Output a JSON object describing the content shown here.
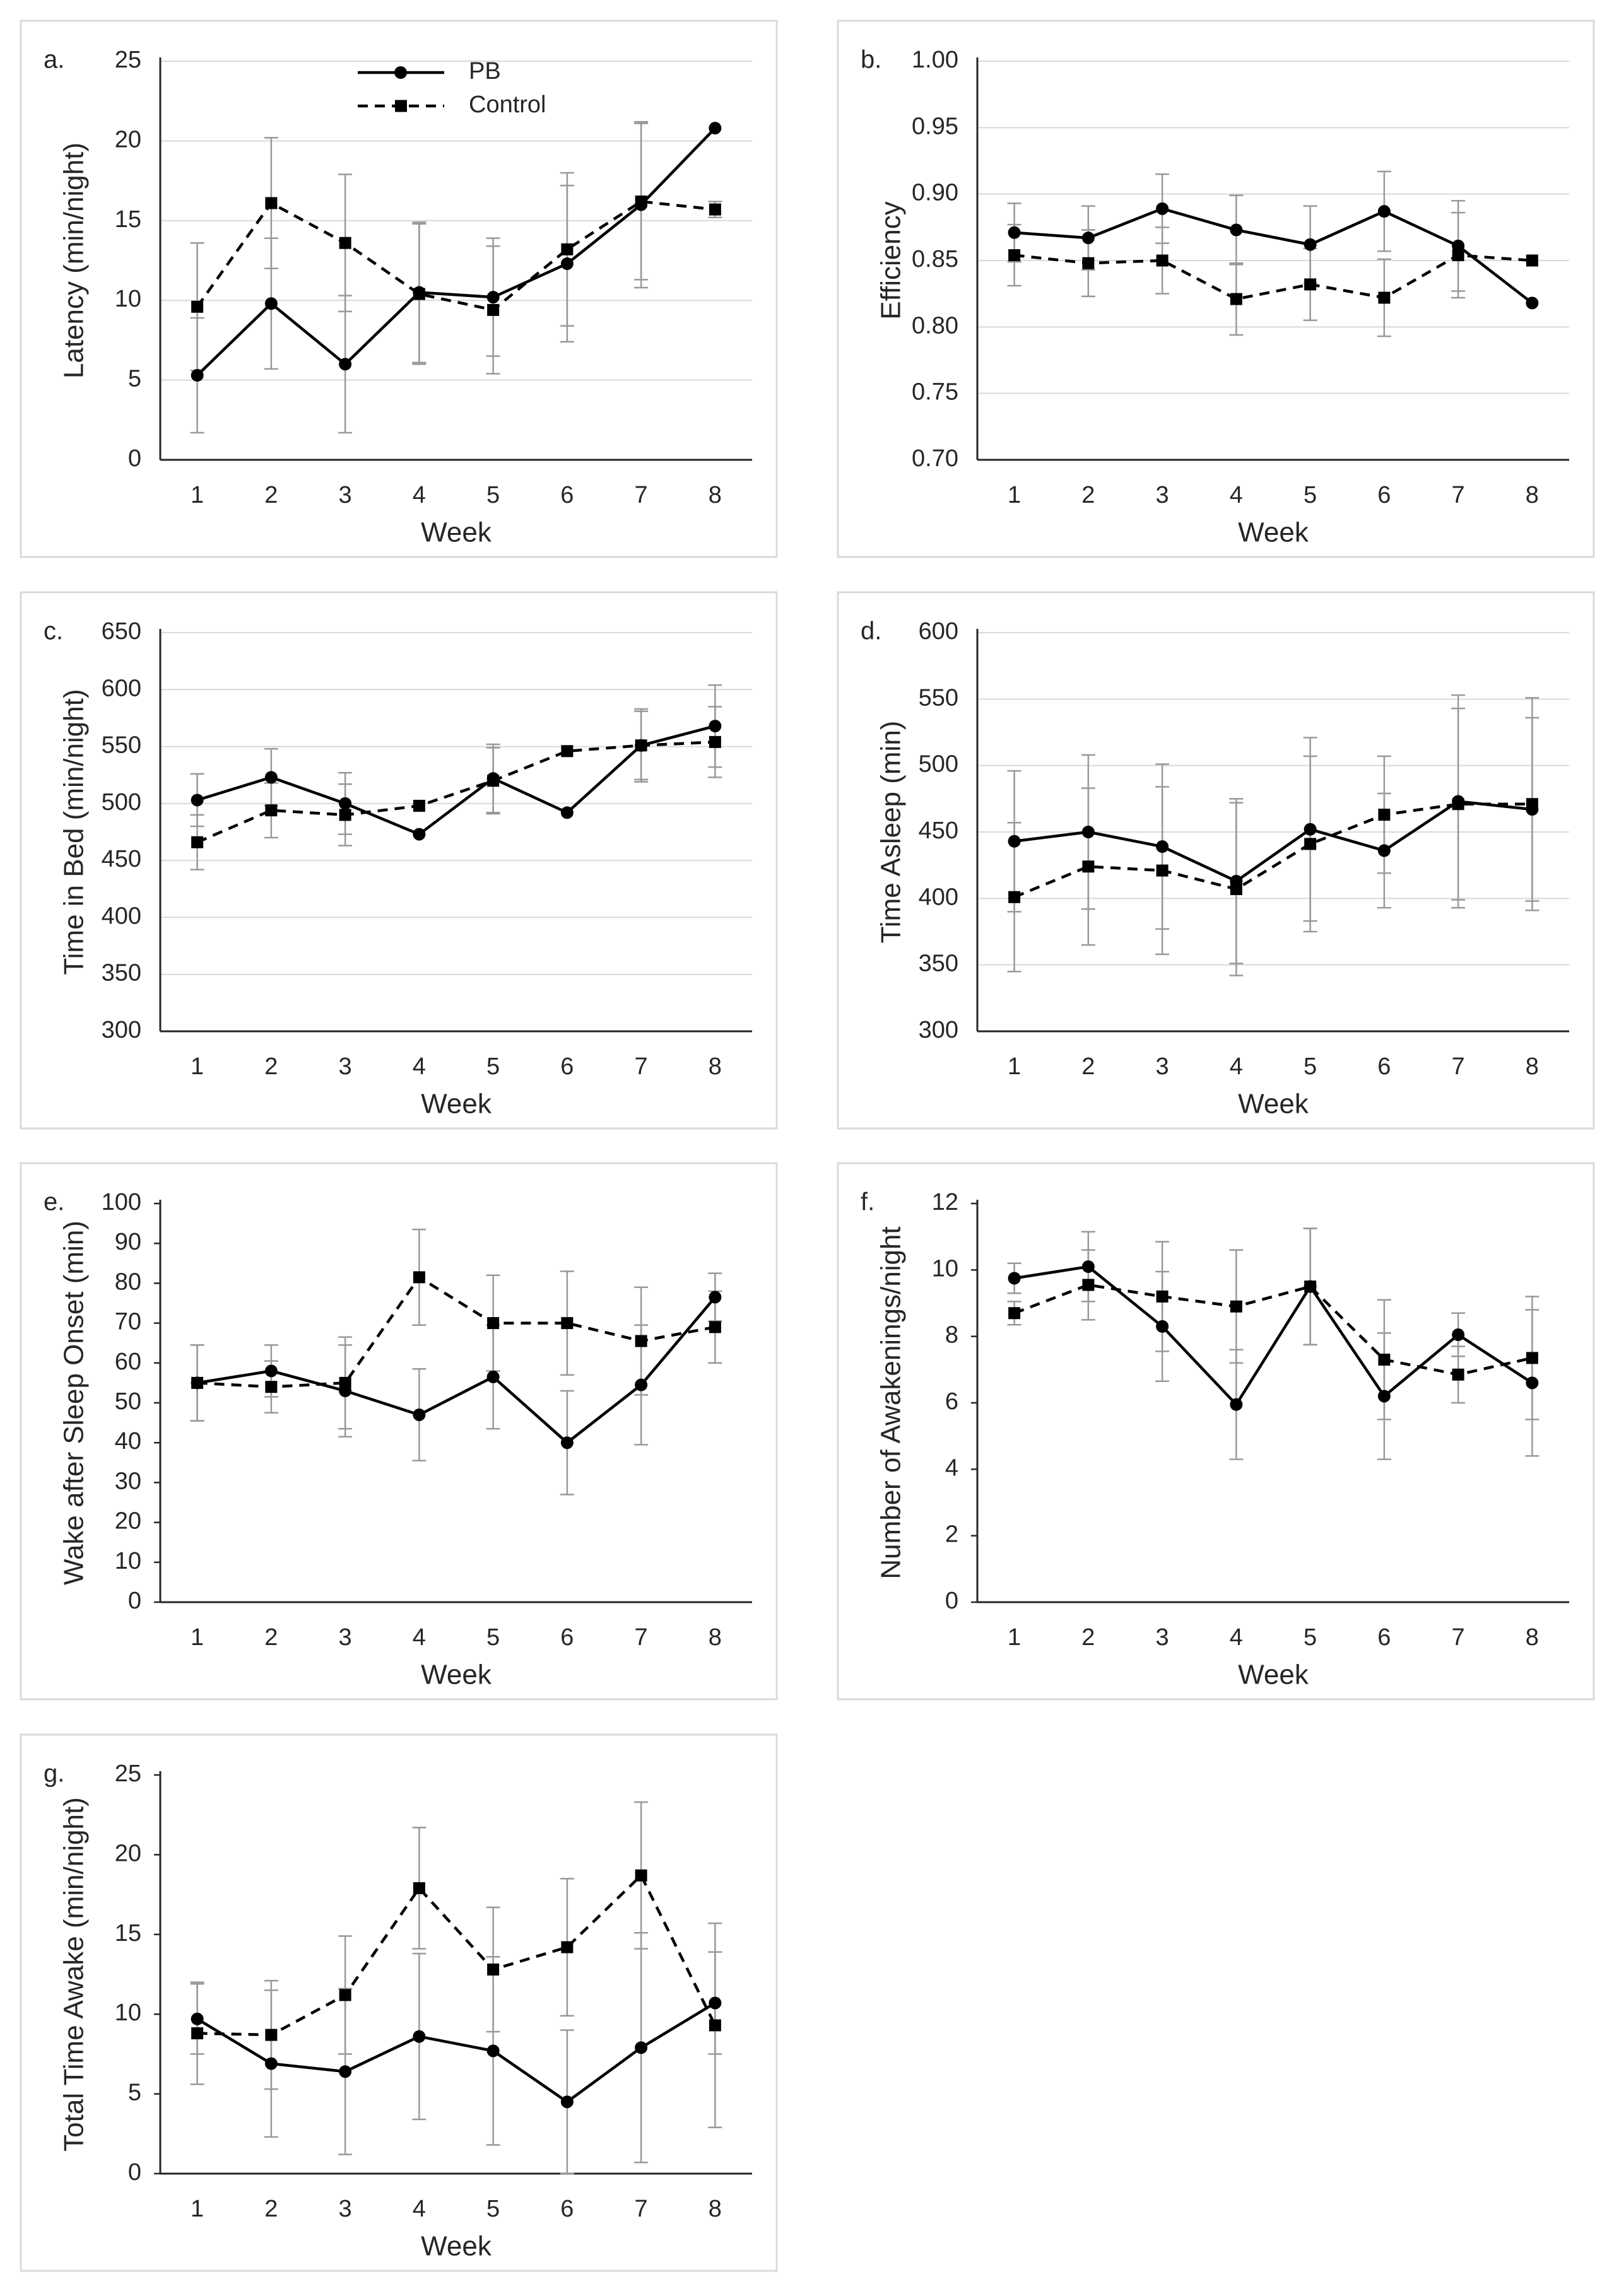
{
  "chart_data": [
    {
      "type": "line",
      "panel_label": "a.",
      "y_label": "Latency (min/night)",
      "x_label": "Week",
      "categories": [
        "1",
        "2",
        "3",
        "4",
        "5",
        "6",
        "7",
        "8"
      ],
      "ylim": [
        0,
        25
      ],
      "yticks": [
        0,
        5,
        10,
        15,
        20,
        25
      ],
      "grid": true,
      "legend": "top",
      "series": [
        {
          "name": "PB",
          "color": "#000000",
          "dashed": false,
          "marker": "circle",
          "values": [
            5.3,
            9.8,
            6.0,
            10.5,
            10.2,
            12.3,
            16.0,
            20.8
          ],
          "errors": [
            3.6,
            4.1,
            4.3,
            4.4,
            3.7,
            4.9,
            5.2,
            null
          ]
        },
        {
          "name": "Control",
          "color": "#000000",
          "dashed": true,
          "marker": "square",
          "values": [
            9.6,
            16.1,
            13.6,
            10.4,
            9.4,
            13.2,
            16.2,
            15.7
          ],
          "errors": [
            4.0,
            4.1,
            4.3,
            4.4,
            4.0,
            4.8,
            4.9,
            0.5
          ]
        }
      ]
    },
    {
      "type": "line",
      "panel_label": "b.",
      "y_label": "Efficiency",
      "x_label": "Week",
      "categories": [
        "1",
        "2",
        "3",
        "4",
        "5",
        "6",
        "7",
        "8"
      ],
      "ylim": [
        0.7,
        1.0
      ],
      "yticks": [
        {
          "value": 0.7,
          "label": "0.70"
        },
        0.75,
        {
          "value": 0.8,
          "label": "0.80"
        },
        0.85,
        {
          "value": 0.9,
          "label": "0.90"
        },
        0.95,
        {
          "value": 1.0,
          "label": "1.00"
        }
      ],
      "grid": true,
      "series": [
        {
          "color": "#000000",
          "dashed": false,
          "marker": "circle",
          "values": [
            0.871,
            0.867,
            0.889,
            0.873,
            0.862,
            0.887,
            0.861,
            0.818
          ],
          "errors": [
            0.022,
            0.024,
            0.026,
            0.026,
            0.029,
            0.03,
            0.034,
            null
          ]
        },
        {
          "color": "#000000",
          "dashed": true,
          "marker": "square",
          "values": [
            0.854,
            0.848,
            0.85,
            0.821,
            0.832,
            0.822,
            0.854,
            0.85
          ],
          "errors": [
            0.023,
            0.025,
            0.025,
            0.027,
            0.027,
            0.029,
            0.032,
            null
          ]
        }
      ]
    },
    {
      "type": "line",
      "panel_label": "c.",
      "y_label": "Time in Bed (min/night)",
      "x_label": "Week",
      "categories": [
        "1",
        "2",
        "3",
        "4",
        "5",
        "6",
        "7",
        "8"
      ],
      "ylim": [
        300,
        650
      ],
      "yticks": [
        300,
        350,
        400,
        450,
        500,
        550,
        600,
        650
      ],
      "grid": true,
      "series": [
        {
          "color": "#000000",
          "dashed": false,
          "marker": "circle",
          "values": [
            503,
            523,
            500,
            473,
            522,
            492,
            551,
            568
          ],
          "errors": [
            23,
            25,
            27,
            null,
            30,
            null,
            32,
            36
          ]
        },
        {
          "color": "#000000",
          "dashed": true,
          "marker": "square",
          "values": [
            466,
            494,
            490,
            498,
            520,
            546,
            551,
            554
          ],
          "errors": [
            24,
            24,
            27,
            null,
            29,
            null,
            30,
            31
          ]
        }
      ]
    },
    {
      "type": "line",
      "panel_label": "d.",
      "y_label": "Time Asleep (min)",
      "x_label": "Week",
      "categories": [
        "1",
        "2",
        "3",
        "4",
        "5",
        "6",
        "7",
        "8"
      ],
      "ylim": [
        300,
        600
      ],
      "yticks": [
        300,
        350,
        400,
        450,
        500,
        550,
        600
      ],
      "grid": true,
      "series": [
        {
          "color": "#000000",
          "dashed": false,
          "marker": "circle",
          "values": [
            443,
            450,
            439,
            413,
            452,
            436,
            473,
            467
          ],
          "errors": [
            53,
            58,
            62,
            62,
            69,
            43,
            80,
            69
          ]
        },
        {
          "color": "#000000",
          "dashed": true,
          "marker": "square",
          "values": [
            401,
            424,
            421,
            407,
            441,
            463,
            471,
            471
          ],
          "errors": [
            56,
            59,
            63,
            65,
            66,
            44,
            72,
            80
          ]
        }
      ]
    },
    {
      "type": "line",
      "panel_label": "e.",
      "y_label": "Wake after Sleep Onset (min)",
      "x_label": "Week",
      "categories": [
        "1",
        "2",
        "3",
        "4",
        "5",
        "6",
        "7",
        "8"
      ],
      "ylim": [
        0,
        100
      ],
      "yticks": [
        0,
        10,
        20,
        30,
        40,
        50,
        60,
        70,
        80,
        90,
        100
      ],
      "grid": false,
      "series": [
        {
          "color": "#000000",
          "dashed": false,
          "marker": "circle",
          "values": [
            55,
            58,
            53,
            47,
            56.5,
            40,
            54.5,
            76.5
          ],
          "errors": [
            9.5,
            6.5,
            11.5,
            11.5,
            13,
            13,
            15,
            6
          ]
        },
        {
          "color": "#000000",
          "dashed": true,
          "marker": "square",
          "values": [
            55,
            54,
            55,
            81.5,
            70,
            70,
            65.5,
            69
          ],
          "errors": [
            9.5,
            6.5,
            11.5,
            12,
            12,
            13,
            13.5,
            9
          ]
        }
      ]
    },
    {
      "type": "line",
      "panel_label": "f.",
      "y_label": "Number of Awakenings/night",
      "x_label": "Week",
      "categories": [
        "1",
        "2",
        "3",
        "4",
        "5",
        "6",
        "7",
        "8"
      ],
      "ylim": [
        0,
        12
      ],
      "yticks": [
        0,
        2,
        4,
        6,
        8,
        10,
        12
      ],
      "grid": false,
      "series": [
        {
          "color": "#000000",
          "dashed": false,
          "marker": "circle",
          "values": [
            9.75,
            10.1,
            8.3,
            5.95,
            9.5,
            6.2,
            8.05,
            6.6
          ],
          "errors": [
            0.45,
            1.05,
            1.65,
            1.65,
            1.75,
            1.9,
            0.65,
            2.2
          ]
        },
        {
          "color": "#000000",
          "dashed": true,
          "marker": "square",
          "values": [
            8.7,
            9.55,
            9.2,
            8.9,
            9.5,
            7.3,
            6.85,
            7.35
          ],
          "errors": [
            0.35,
            1.05,
            1.65,
            1.7,
            1.75,
            1.8,
            0.85,
            1.85
          ]
        }
      ]
    },
    {
      "type": "line",
      "panel_label": "g.",
      "y_label": "Total Time Awake (min/night)",
      "x_label": "Week",
      "categories": [
        "1",
        "2",
        "3",
        "4",
        "5",
        "6",
        "7",
        "8"
      ],
      "ylim": [
        0,
        25
      ],
      "yticks": [
        0,
        5,
        10,
        15,
        20,
        25
      ],
      "grid": false,
      "series": [
        {
          "color": "#000000",
          "dashed": false,
          "marker": "circle",
          "values": [
            9.7,
            6.9,
            6.4,
            8.6,
            7.7,
            4.5,
            7.9,
            10.7
          ],
          "errors": [
            2.2,
            4.6,
            5.2,
            5.2,
            5.9,
            4.5,
            7.2,
            3.2
          ]
        },
        {
          "color": "#000000",
          "dashed": true,
          "marker": "square",
          "values": [
            8.8,
            8.7,
            11.2,
            17.9,
            12.8,
            14.2,
            18.7,
            9.3
          ],
          "errors": [
            3.2,
            3.4,
            3.7,
            3.8,
            3.9,
            4.3,
            4.6,
            6.4
          ]
        }
      ]
    }
  ]
}
